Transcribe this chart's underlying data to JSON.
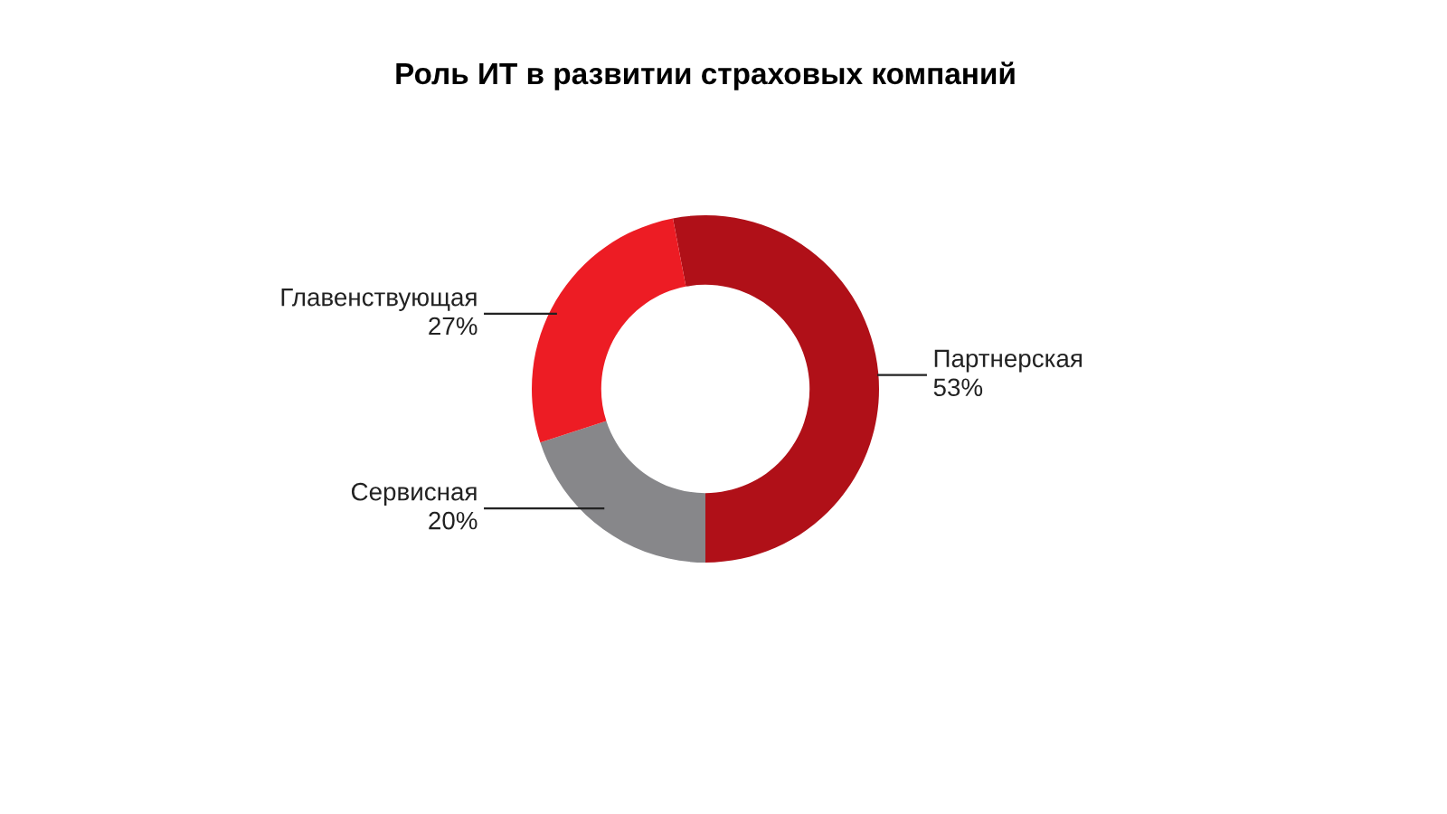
{
  "chart_data": {
    "type": "donut",
    "title": "Роль ИТ в развитии страховых компаний",
    "categories": [
      "Партнерская",
      "Сервисная",
      "Главенствующая"
    ],
    "values": [
      53,
      20,
      27
    ],
    "value_labels": [
      "53%",
      "20%",
      "27%"
    ],
    "colors": [
      "#b01018",
      "#87878a",
      "#ed1c24"
    ],
    "legend": false
  }
}
